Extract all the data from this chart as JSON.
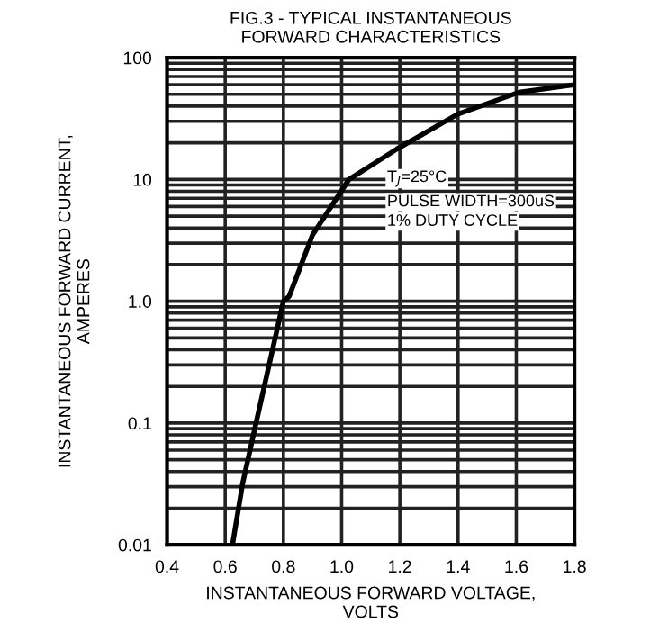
{
  "chart_data": {
    "type": "line",
    "title": "FIG.3 - TYPICAL INSTANTANEOUS\nFORWARD CHARACTERISTICS",
    "xlabel": "INSTANTANEOUS FORWARD VOLTAGE,\nVOLTS",
    "ylabel": "INSTANTANEOUS FORWARD CURRENT,\nAMPERES",
    "x": [
      0.625,
      0.66,
      0.706,
      0.8,
      0.82,
      0.9,
      1.025,
      1.19,
      1.4,
      1.61,
      1.8
    ],
    "series": [
      {
        "color": "#000000",
        "values": [
          0.01,
          0.032,
          0.1,
          1.0,
          1.1,
          3.5,
          10,
          17.8,
          34.5,
          52,
          60
        ]
      }
    ],
    "log": "y",
    "xlim": [
      0.4,
      1.8
    ],
    "xticks": [
      {
        "value": 0.4,
        "label": "0.4"
      },
      {
        "value": 0.6,
        "label": "0.6"
      },
      {
        "value": 0.8,
        "label": "0.8"
      },
      {
        "value": 1.0,
        "label": "1.0"
      },
      {
        "value": 1.2,
        "label": "1.2"
      },
      {
        "value": 1.4,
        "label": "1.4"
      },
      {
        "value": 1.6,
        "label": "1.6"
      },
      {
        "value": 1.8,
        "label": "1.8"
      }
    ],
    "ylim": [
      0.01,
      100
    ],
    "yticks": [
      {
        "value": 0.01,
        "label": "0.01"
      },
      {
        "value": 0.1,
        "label": "0.1"
      },
      {
        "value": 1,
        "label": "1.0"
      },
      {
        "value": 10,
        "label": "10"
      },
      {
        "value": 100,
        "label": "100"
      }
    ],
    "grid": true,
    "marker": "none",
    "line_style": "solid",
    "legend": false,
    "annotations": [
      "T$_{J}$=25°C",
      "PULSE WIDTH=300uS",
      "1% DUTY CYCLE"
    ]
  }
}
